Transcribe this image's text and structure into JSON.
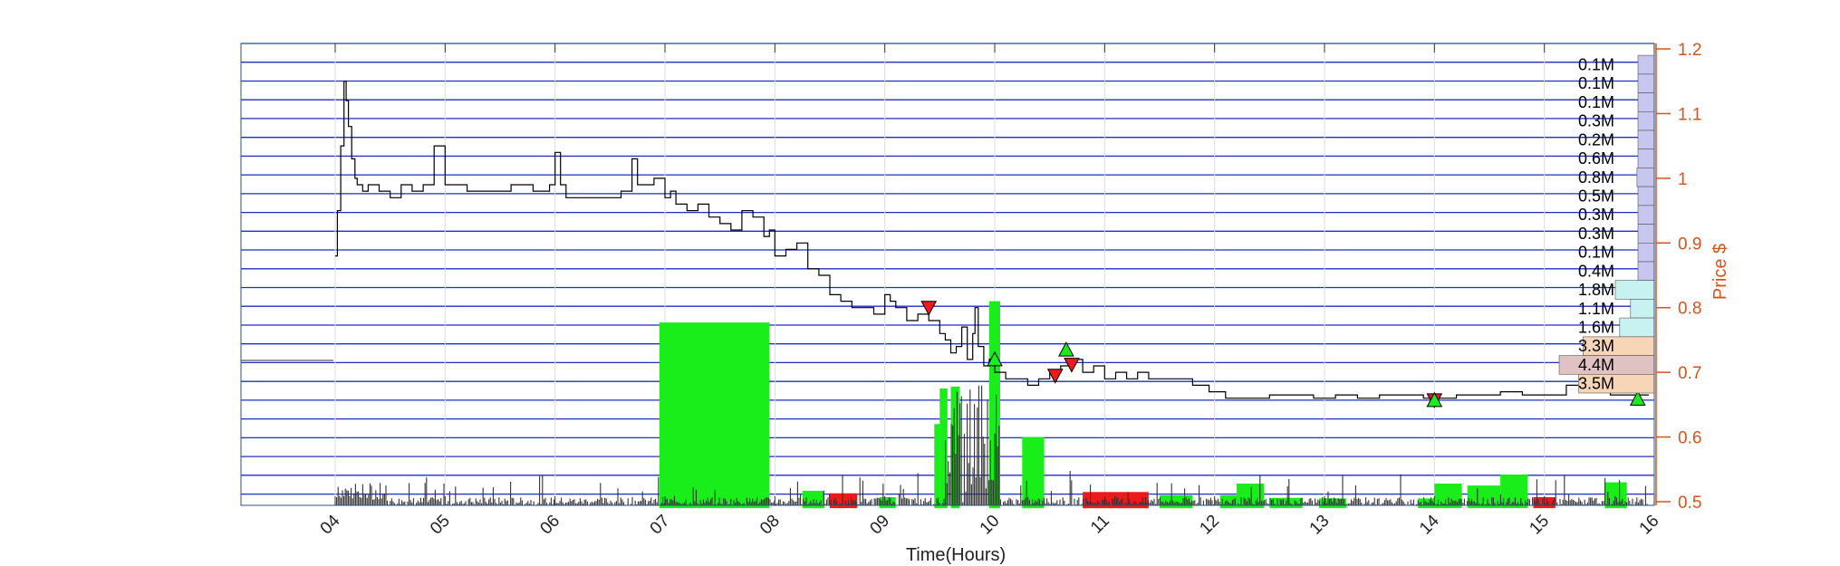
{
  "chart_data": {
    "type": "line",
    "xlabel": "Time(Hours)",
    "ylabel": "Price $",
    "xlim": [
      3.2,
      16.1
    ],
    "ylim": [
      0.49,
      1.2
    ],
    "x_ticks": [
      "04",
      "05",
      "06",
      "07",
      "08",
      "09",
      "10",
      "11",
      "12",
      "13",
      "14",
      "15",
      "16"
    ],
    "y_ticks": [
      "0.5",
      "0.6",
      "0.7",
      "0.8",
      "0.9",
      "1",
      "1.1",
      "1.2"
    ],
    "colors": {
      "price": "#000000",
      "axis_right": "#d95319",
      "grid_band": "#1f2fbf",
      "volume_up": "#1aee1a",
      "volume_down": "#ee1a1a",
      "volume_profile_low": "#c6c6ee",
      "volume_profile_mid": "#c8f2f2",
      "volume_profile_high": "#f7d6b8",
      "volume_profile_max": "#e0c2c2"
    },
    "price_series": {
      "x": [
        4.0,
        4.02,
        4.05,
        4.08,
        4.1,
        4.12,
        4.15,
        4.18,
        4.2,
        4.25,
        4.3,
        4.4,
        4.5,
        4.6,
        4.7,
        4.8,
        4.9,
        5.0,
        5.2,
        5.4,
        5.6,
        5.8,
        5.95,
        6.0,
        6.05,
        6.1,
        6.3,
        6.5,
        6.6,
        6.7,
        6.75,
        6.8,
        6.9,
        7.0,
        7.05,
        7.1,
        7.2,
        7.3,
        7.4,
        7.5,
        7.6,
        7.7,
        7.8,
        7.9,
        7.95,
        8.0,
        8.1,
        8.2,
        8.3,
        8.4,
        8.5,
        8.6,
        8.7,
        8.8,
        8.9,
        9.0,
        9.05,
        9.1,
        9.2,
        9.3,
        9.4,
        9.5,
        9.55,
        9.6,
        9.65,
        9.7,
        9.75,
        9.8,
        9.82,
        9.85,
        9.9,
        9.95,
        10.0,
        10.1,
        10.2,
        10.3,
        10.4,
        10.5,
        10.6,
        10.7,
        10.8,
        10.9,
        11.0,
        11.1,
        11.2,
        11.3,
        11.4,
        11.6,
        11.8,
        11.95,
        12.1,
        12.3,
        12.5,
        12.7,
        12.9,
        13.1,
        13.3,
        13.5,
        13.7,
        13.9,
        14.0,
        14.2,
        14.4,
        14.6,
        14.8,
        15.0,
        15.2,
        15.4,
        15.6,
        15.8,
        15.95
      ],
      "y": [
        0.88,
        0.95,
        1.05,
        1.15,
        1.12,
        1.08,
        1.03,
        1.0,
        0.99,
        0.98,
        0.99,
        0.98,
        0.97,
        0.99,
        0.98,
        0.99,
        1.05,
        0.99,
        0.98,
        0.98,
        0.99,
        0.98,
        0.99,
        1.04,
        0.99,
        0.97,
        0.97,
        0.97,
        0.98,
        1.03,
        0.99,
        0.99,
        1.0,
        0.97,
        0.98,
        0.96,
        0.95,
        0.96,
        0.94,
        0.93,
        0.92,
        0.95,
        0.94,
        0.91,
        0.92,
        0.88,
        0.89,
        0.9,
        0.86,
        0.85,
        0.82,
        0.81,
        0.8,
        0.8,
        0.79,
        0.82,
        0.81,
        0.8,
        0.78,
        0.79,
        0.78,
        0.76,
        0.75,
        0.73,
        0.74,
        0.77,
        0.72,
        0.76,
        0.8,
        0.74,
        0.71,
        0.72,
        0.7,
        0.69,
        0.69,
        0.68,
        0.69,
        0.7,
        0.71,
        0.72,
        0.7,
        0.71,
        0.69,
        0.7,
        0.69,
        0.7,
        0.69,
        0.69,
        0.68,
        0.67,
        0.66,
        0.66,
        0.665,
        0.665,
        0.66,
        0.665,
        0.66,
        0.665,
        0.665,
        0.66,
        0.66,
        0.665,
        0.665,
        0.67,
        0.665,
        0.665,
        0.68,
        0.67,
        0.665,
        0.665,
        0.665
      ]
    },
    "sell_markers": [
      [
        9.4,
        0.8
      ],
      [
        10.55,
        0.695
      ],
      [
        10.7,
        0.712
      ],
      [
        14.0,
        0.657
      ]
    ],
    "buy_markers": [
      [
        10.0,
        0.72
      ],
      [
        10.65,
        0.735
      ],
      [
        14.0,
        0.657
      ],
      [
        15.85,
        0.659
      ]
    ],
    "volume_bars": [
      {
        "x0": 6.95,
        "x1": 7.95,
        "top": 0.777,
        "dir": "up"
      },
      {
        "x0": 9.5,
        "x1": 9.57,
        "top": 0.675,
        "dir": "up"
      },
      {
        "x0": 9.6,
        "x1": 9.68,
        "top": 0.678,
        "dir": "up"
      },
      {
        "x0": 9.45,
        "x1": 9.5,
        "top": 0.62,
        "dir": "up"
      },
      {
        "x0": 9.95,
        "x1": 10.05,
        "top": 0.81,
        "dir": "up"
      },
      {
        "x0": 10.25,
        "x1": 10.45,
        "top": 0.6,
        "dir": "up"
      },
      {
        "x0": 8.25,
        "x1": 8.45,
        "top": 0.517,
        "dir": "up"
      },
      {
        "x0": 8.5,
        "x1": 8.75,
        "top": 0.513,
        "dir": "down"
      },
      {
        "x0": 8.95,
        "x1": 9.1,
        "top": 0.507,
        "dir": "up"
      },
      {
        "x0": 10.8,
        "x1": 11.4,
        "top": 0.515,
        "dir": "down"
      },
      {
        "x0": 11.5,
        "x1": 11.8,
        "top": 0.51,
        "dir": "up"
      },
      {
        "x0": 12.05,
        "x1": 12.2,
        "top": 0.51,
        "dir": "up"
      },
      {
        "x0": 12.2,
        "x1": 12.45,
        "top": 0.528,
        "dir": "up"
      },
      {
        "x0": 12.5,
        "x1": 12.8,
        "top": 0.506,
        "dir": "up"
      },
      {
        "x0": 12.95,
        "x1": 13.2,
        "top": 0.505,
        "dir": "up"
      },
      {
        "x0": 13.85,
        "x1": 14.1,
        "top": 0.505,
        "dir": "up"
      },
      {
        "x0": 14.0,
        "x1": 14.25,
        "top": 0.528,
        "dir": "up"
      },
      {
        "x0": 14.3,
        "x1": 14.6,
        "top": 0.525,
        "dir": "up"
      },
      {
        "x0": 14.6,
        "x1": 14.85,
        "top": 0.542,
        "dir": "up"
      },
      {
        "x0": 14.9,
        "x1": 15.1,
        "top": 0.507,
        "dir": "down"
      },
      {
        "x0": 15.55,
        "x1": 15.75,
        "top": 0.53,
        "dir": "up"
      }
    ],
    "volume_profile": [
      {
        "label": "0.1M",
        "y0": 1.161,
        "y1": 1.19,
        "vol": 0.1
      },
      {
        "label": "0.1M",
        "y0": 1.132,
        "y1": 1.161,
        "vol": 0.1
      },
      {
        "label": "0.1M",
        "y0": 1.103,
        "y1": 1.132,
        "vol": 0.1
      },
      {
        "label": "0.3M",
        "y0": 1.074,
        "y1": 1.103,
        "vol": 0.3
      },
      {
        "label": "0.2M",
        "y0": 1.045,
        "y1": 1.074,
        "vol": 0.2
      },
      {
        "label": "0.6M",
        "y0": 1.016,
        "y1": 1.045,
        "vol": 0.6
      },
      {
        "label": "0.8M",
        "y0": 0.987,
        "y1": 1.016,
        "vol": 0.8
      },
      {
        "label": "0.5M",
        "y0": 0.958,
        "y1": 0.987,
        "vol": 0.5
      },
      {
        "label": "0.3M",
        "y0": 0.929,
        "y1": 0.958,
        "vol": 0.3
      },
      {
        "label": "0.3M",
        "y0": 0.9,
        "y1": 0.929,
        "vol": 0.3
      },
      {
        "label": "0.1M",
        "y0": 0.871,
        "y1": 0.9,
        "vol": 0.1
      },
      {
        "label": "0.4M",
        "y0": 0.842,
        "y1": 0.871,
        "vol": 0.4
      },
      {
        "label": "1.8M",
        "y0": 0.813,
        "y1": 0.842,
        "vol": 1.8
      },
      {
        "label": "1.1M",
        "y0": 0.784,
        "y1": 0.813,
        "vol": 1.1
      },
      {
        "label": "1.6M",
        "y0": 0.755,
        "y1": 0.784,
        "vol": 1.6
      },
      {
        "label": "3.3M",
        "y0": 0.726,
        "y1": 0.755,
        "vol": 3.3
      },
      {
        "label": "4.4M",
        "y0": 0.697,
        "y1": 0.726,
        "vol": 4.4
      },
      {
        "label": "3.5M",
        "y0": 0.668,
        "y1": 0.697,
        "vol": 3.5
      }
    ],
    "grid": true,
    "legend": "none"
  }
}
